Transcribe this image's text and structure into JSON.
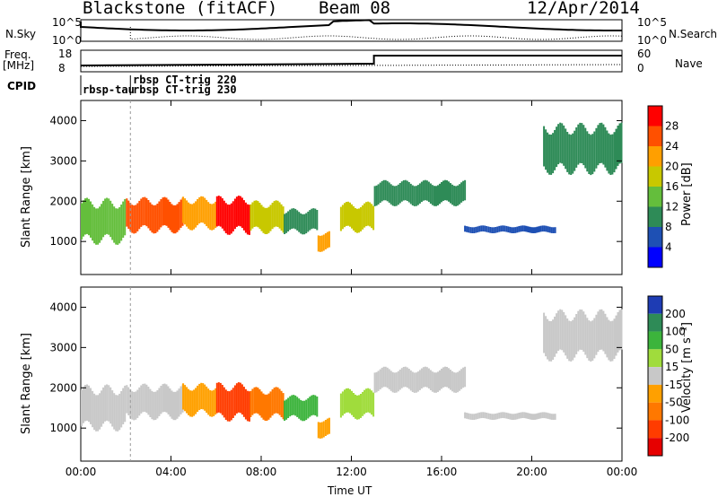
{
  "header": {
    "station": "Blackstone (fitACF)",
    "beam": "Beam 08",
    "date": "12/Apr/2014"
  },
  "top_labels": {
    "nsky": "N.Sky",
    "nsearch": "N.Search",
    "freq": "Freq.",
    "freq_unit": "[MHz]",
    "nave": "Nave",
    "cpid": "CPID",
    "nsky_ticks": [
      "10^5",
      "10^0"
    ],
    "nsearch_ticks": [
      "10^5",
      "10^0"
    ],
    "freq_ticks": [
      "18",
      "8"
    ],
    "nave_ticks": [
      "60",
      "0"
    ]
  },
  "cpid_labels": [
    "rbsp-tau",
    "rbsp CT-trig 220",
    "rbsp CT-trig 230"
  ],
  "panels": {
    "power": {
      "ylabel": "Slant Range [km]",
      "cbar_label": "Power [dB]",
      "cbar_ticks": [
        "28",
        "24",
        "20",
        "16",
        "12",
        "8",
        "4"
      ],
      "cbar_colors": [
        "#ff0000",
        "#ff5000",
        "#ff9f00",
        "#c8c800",
        "#64be3c",
        "#2e8b57",
        "#1e50b4",
        "#0000ff"
      ]
    },
    "velocity": {
      "ylabel": "Slant Range [km]",
      "cbar_label": "Velocity [m s⁻¹]",
      "cbar_ticks": [
        "200",
        "100",
        "50",
        "15",
        "-15",
        "-50",
        "-100",
        "-200"
      ],
      "cbar_colors": [
        "#1e3cb4",
        "#2e8b57",
        "#3cb43c",
        "#a0dc3c",
        "#c8c8c8",
        "#ffa000",
        "#ff7800",
        "#ff3c00",
        "#e60000"
      ]
    }
  },
  "yticks": [
    "4000",
    "3000",
    "2000",
    "1000"
  ],
  "xticks": [
    "00:00",
    "04:00",
    "08:00",
    "12:00",
    "16:00",
    "20:00",
    "00:00"
  ],
  "xlabel": "Time UT",
  "chart_data": {
    "type": "heatmap",
    "title": "Blackstone (fitACF)",
    "subtitle": "Beam 08",
    "date": "12/Apr/2014",
    "xlabel": "Time UT",
    "ylabel": "Slant Range [km]",
    "x_ticks": [
      "00:00",
      "04:00",
      "08:00",
      "12:00",
      "16:00",
      "20:00",
      "00:00"
    ],
    "x_range_hours": [
      0,
      24
    ],
    "ylim": [
      180,
      4500
    ],
    "power_range_db": [
      0,
      30
    ],
    "velocity_range_ms": [
      -250,
      250
    ],
    "echo_bands": [
      {
        "start_h": 0.0,
        "end_h": 2.0,
        "center_km": 1500,
        "width_km": 900,
        "power_db": 14,
        "velocity_ms": -20
      },
      {
        "start_h": 2.0,
        "end_h": 4.5,
        "center_km": 1650,
        "width_km": 700,
        "power_db": 24,
        "velocity_ms": 0
      },
      {
        "start_h": 4.5,
        "end_h": 6.0,
        "center_km": 1700,
        "width_km": 650,
        "power_db": 20,
        "velocity_ms": -40
      },
      {
        "start_h": 6.0,
        "end_h": 7.5,
        "center_km": 1650,
        "width_km": 750,
        "power_db": 28,
        "velocity_ms": -180
      },
      {
        "start_h": 7.5,
        "end_h": 9.0,
        "center_km": 1600,
        "width_km": 650,
        "power_db": 16,
        "velocity_ms": -90
      },
      {
        "start_h": 9.0,
        "end_h": 10.5,
        "center_km": 1500,
        "width_km": 500,
        "power_db": 8,
        "velocity_ms": 120
      },
      {
        "start_h": 10.5,
        "end_h": 11.0,
        "center_km": 1000,
        "width_km": 400,
        "power_db": 20,
        "velocity_ms": -60
      },
      {
        "start_h": 11.5,
        "end_h": 13.0,
        "center_km": 1600,
        "width_km": 600,
        "power_db": 18,
        "velocity_ms": 30
      },
      {
        "start_h": 13.0,
        "end_h": 17.0,
        "center_km": 2200,
        "width_km": 500,
        "power_db": 8,
        "velocity_ms": -5
      },
      {
        "start_h": 17.0,
        "end_h": 21.0,
        "center_km": 1300,
        "width_km": 150,
        "power_db": 6,
        "velocity_ms": -10
      },
      {
        "start_h": 20.5,
        "end_h": 24.0,
        "center_km": 3300,
        "width_km": 1000,
        "power_db": 10,
        "velocity_ms": -10
      }
    ]
  }
}
